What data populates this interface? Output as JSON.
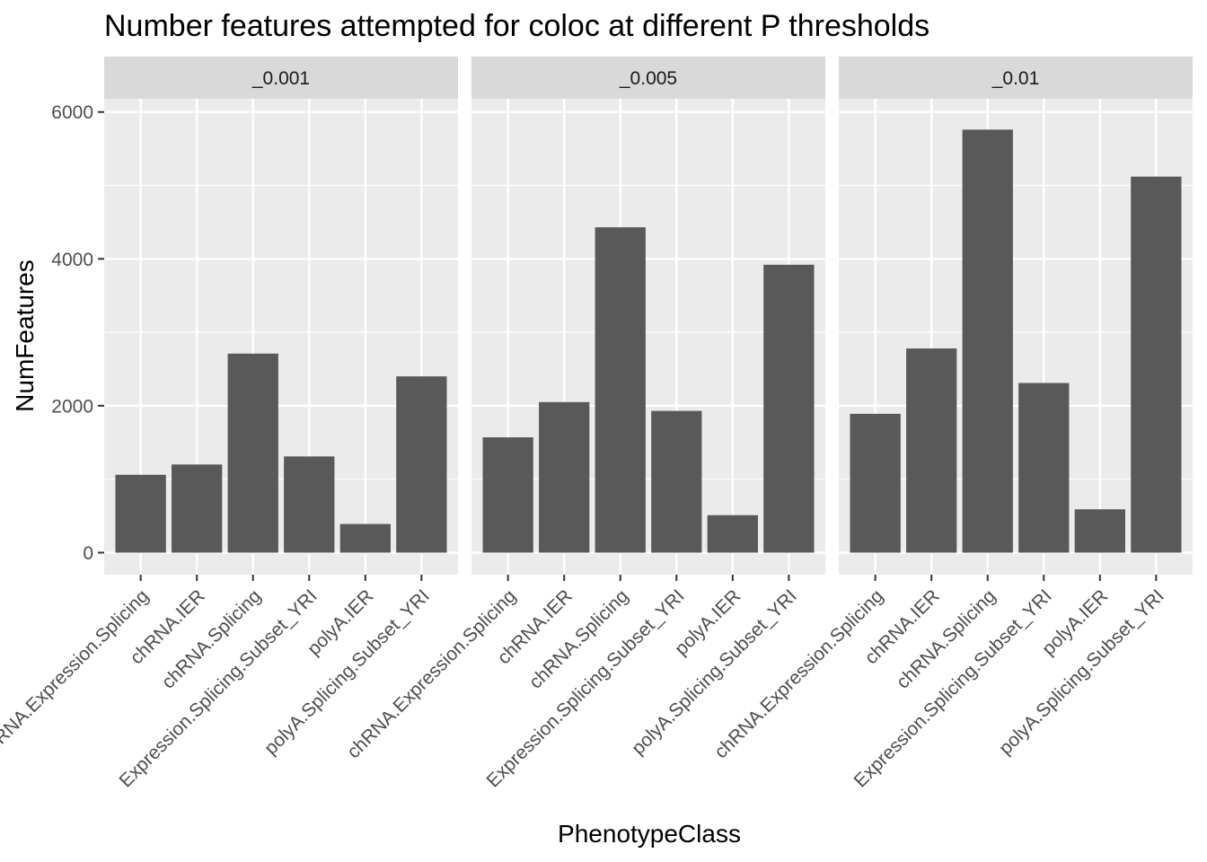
{
  "chart_data": {
    "type": "bar",
    "title": "Number features attempted for coloc at different P thresholds",
    "xlabel": "PhenotypeClass",
    "ylabel": "NumFeatures",
    "ylim": [
      -300,
      6180
    ],
    "yticks": [
      0,
      2000,
      4000,
      6000
    ],
    "grid": true,
    "categories": [
      "chRNA.Expression.Splicing",
      "chRNA.IER",
      "chRNA.Splicing",
      "Expression.Splicing.Subset_YRI",
      "polyA.IER",
      "polyA.Splicing.Subset_YRI"
    ],
    "facets": [
      {
        "label": "_0.001",
        "values": [
          1060,
          1200,
          2710,
          1310,
          390,
          2400
        ]
      },
      {
        "label": "_0.005",
        "values": [
          1570,
          2050,
          4430,
          1930,
          510,
          3920
        ]
      },
      {
        "label": "_0.01",
        "values": [
          1890,
          2780,
          5760,
          2310,
          590,
          5120
        ]
      }
    ],
    "colors": {
      "bar": "#595959",
      "panel_bg": "#ebebeb",
      "strip_bg": "#d9d9d9",
      "grid": "#ffffff",
      "tick": "#333333"
    }
  }
}
